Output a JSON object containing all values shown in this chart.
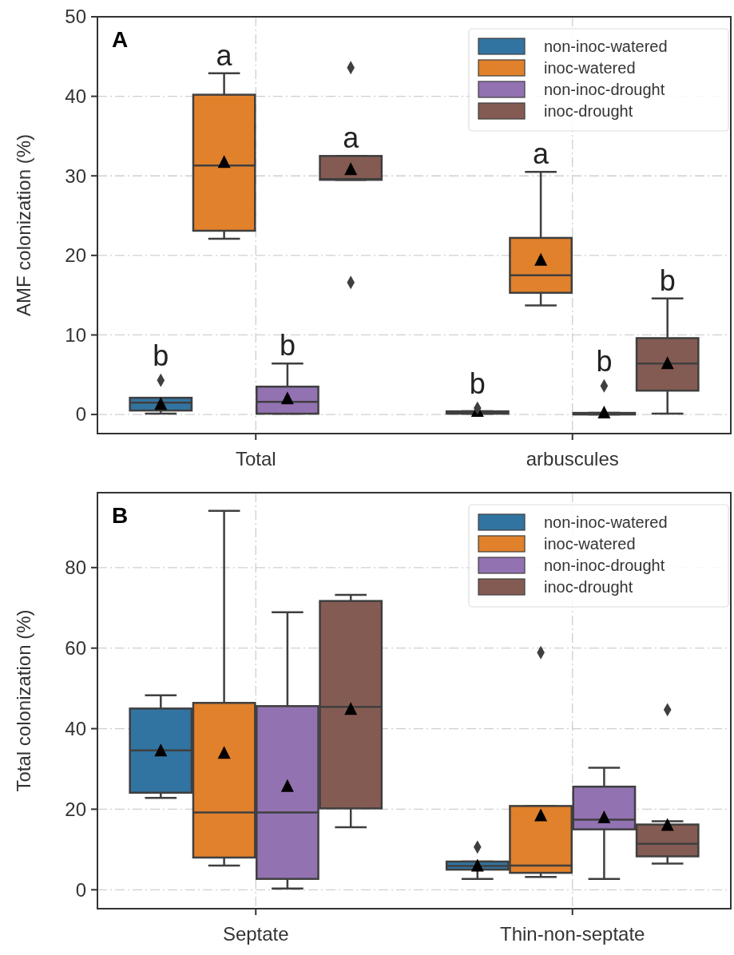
{
  "chart_data": [
    {
      "type": "box",
      "title": "A",
      "ylabel": "AMF colonization (%)",
      "categories": [
        "Total",
        "arbuscules"
      ],
      "ylim": [
        -2.4,
        50
      ],
      "yticks": [
        0,
        10,
        20,
        30,
        40,
        50
      ],
      "grid": true,
      "legend": "top right",
      "marker": "diamond",
      "annotations": [
        "b",
        "a",
        "b",
        "a",
        "b",
        "a",
        "b",
        "b"
      ],
      "series": [
        {
          "name": "non-inoc-watered",
          "color": "#3274a1",
          "boxes": [
            {
              "low": 0.1,
              "q1": 0.5,
              "median": 1.5,
              "q3": 2.1,
              "high": 2.1,
              "mean": 1.4,
              "outliers": [
                4.3
              ]
            },
            {
              "low": 0.1,
              "q1": 0.1,
              "median": 0.2,
              "q3": 0.4,
              "high": 0.4,
              "mean": 0.5,
              "outliers": [
                0.8
              ]
            }
          ]
        },
        {
          "name": "inoc-watered",
          "color": "#e1812c",
          "boxes": [
            {
              "low": 22.1,
              "q1": 23.1,
              "median": 31.3,
              "q3": 40.2,
              "high": 42.9,
              "mean": 31.8
            },
            {
              "low": 13.7,
              "q1": 15.3,
              "median": 17.5,
              "q3": 22.2,
              "high": 30.5,
              "mean": 19.5
            }
          ]
        },
        {
          "name": "non-inoc-drought",
          "color": "#9372b2",
          "boxes": [
            {
              "low": 0.1,
              "q1": 0.1,
              "median": 1.6,
              "q3": 3.5,
              "high": 6.4,
              "mean": 2.1
            },
            {
              "low": 0,
              "q1": 0,
              "median": 0.1,
              "q3": 0.2,
              "high": 0.2,
              "mean": 0.3,
              "outliers": [
                3.6
              ]
            }
          ]
        },
        {
          "name": "inoc-drought",
          "color": "#845b53",
          "boxes": [
            {
              "low": 29.5,
              "q1": 29.5,
              "median": 29.6,
              "q3": 32.5,
              "high": 32.5,
              "mean": 30.9,
              "outliers": [
                43.6,
                16.6
              ]
            },
            {
              "low": 0.1,
              "q1": 3.0,
              "median": 6.4,
              "q3": 9.6,
              "high": 14.6,
              "mean": 6.5
            }
          ]
        }
      ]
    },
    {
      "type": "box",
      "title": "B",
      "ylabel": "Total colonization (%)",
      "categories": [
        "Septate",
        "Thin-non-septate"
      ],
      "ylim": [
        -4.7,
        98.6
      ],
      "yticks": [
        0,
        20,
        40,
        60,
        80
      ],
      "grid": true,
      "legend": "top right",
      "marker": "diamond",
      "series": [
        {
          "name": "non-inoc-watered",
          "color": "#3274a1",
          "boxes": [
            {
              "low": 22.8,
              "q1": 24.1,
              "median": 34.6,
              "q3": 45.0,
              "high": 48.3,
              "mean": 34.7
            },
            {
              "low": 2.7,
              "q1": 5.0,
              "median": 5.9,
              "q3": 7.0,
              "high": 7.0,
              "mean": 6.1,
              "outliers": [
                10.6
              ]
            }
          ]
        },
        {
          "name": "inoc-watered",
          "color": "#e1812c",
          "boxes": [
            {
              "low": 6.0,
              "q1": 8.0,
              "median": 19.2,
              "q3": 46.4,
              "high": 94.1,
              "mean": 34.1
            },
            {
              "low": 3.2,
              "q1": 4.2,
              "median": 6.0,
              "q3": 20.8,
              "high": 20.8,
              "mean": 18.6,
              "outliers": [
                58.9
              ]
            }
          ]
        },
        {
          "name": "non-inoc-drought",
          "color": "#9372b2",
          "boxes": [
            {
              "low": 0.3,
              "q1": 2.7,
              "median": 19.2,
              "q3": 45.6,
              "high": 68.9,
              "mean": 25.9
            },
            {
              "low": 2.7,
              "q1": 15.0,
              "median": 17.4,
              "q3": 25.6,
              "high": 30.3,
              "mean": 18.1
            }
          ]
        },
        {
          "name": "inoc-drought",
          "color": "#845b53",
          "boxes": [
            {
              "low": 15.5,
              "q1": 20.2,
              "median": 45.4,
              "q3": 71.7,
              "high": 73.2,
              "mean": 45.0
            },
            {
              "low": 6.5,
              "q1": 8.3,
              "median": 11.4,
              "q3": 16.2,
              "high": 17.0,
              "mean": 16.2,
              "outliers": [
                44.7
              ]
            }
          ]
        }
      ]
    }
  ]
}
